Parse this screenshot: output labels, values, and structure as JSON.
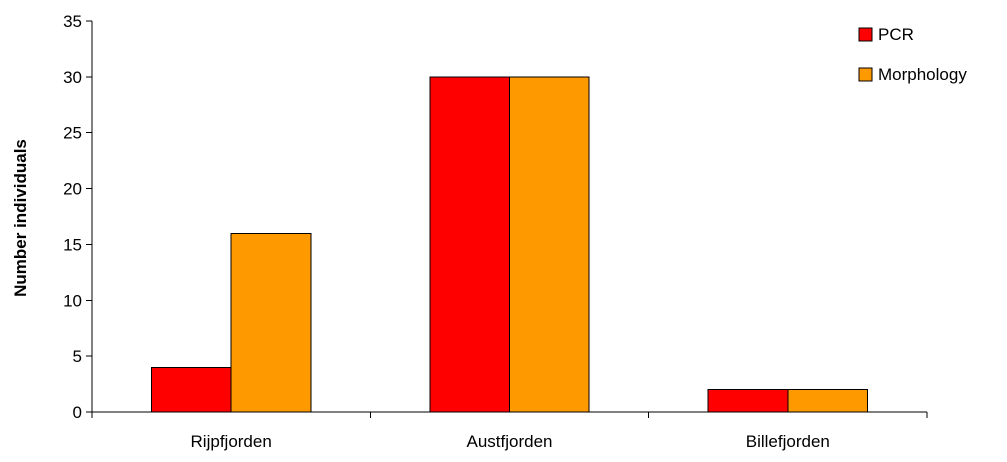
{
  "chart_data": {
    "type": "bar",
    "categories": [
      "Rijpfjorden",
      "Austfjorden",
      "Billefjorden"
    ],
    "series": [
      {
        "name": "PCR",
        "values": [
          4,
          30,
          2
        ],
        "color": "#ff0000"
      },
      {
        "name": "Morphology",
        "values": [
          16,
          30,
          2
        ],
        "color": "#ff9900"
      }
    ],
    "ylabel": "Number individuals",
    "xlabel": "",
    "ylim": [
      0,
      35
    ],
    "yticks": [
      0,
      5,
      10,
      15,
      20,
      25,
      30,
      35
    ],
    "grid": false,
    "legend": "top-right"
  }
}
